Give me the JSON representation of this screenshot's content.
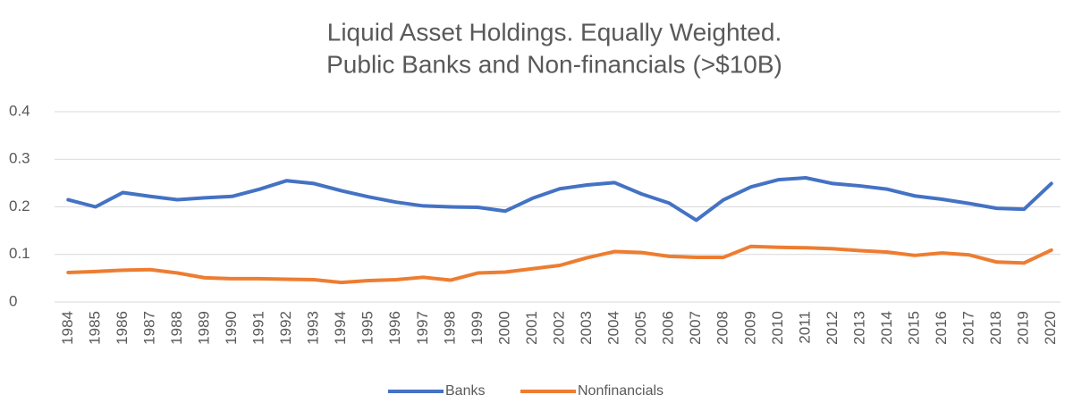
{
  "chart_data": {
    "type": "line",
    "title": "Liquid Asset Holdings. Equally Weighted.",
    "subtitle": "Public Banks and Non-financials (>$10B)",
    "categories": [
      "1984",
      "1985",
      "1986",
      "1987",
      "1988",
      "1989",
      "1990",
      "1991",
      "1992",
      "1993",
      "1994",
      "1995",
      "1996",
      "1997",
      "1998",
      "1999",
      "2000",
      "2001",
      "2002",
      "2003",
      "2004",
      "2005",
      "2006",
      "2007",
      "2008",
      "2009",
      "2010",
      "2011",
      "2012",
      "2013",
      "2014",
      "2015",
      "2016",
      "2017",
      "2018",
      "2019",
      "2020"
    ],
    "series": [
      {
        "name": "Banks",
        "color": "#4472c4",
        "values": [
          0.215,
          0.2,
          0.23,
          0.222,
          0.215,
          0.219,
          0.222,
          0.237,
          0.255,
          0.249,
          0.234,
          0.221,
          0.21,
          0.202,
          0.2,
          0.199,
          0.191,
          0.218,
          0.238,
          0.246,
          0.251,
          0.227,
          0.208,
          0.172,
          0.215,
          0.242,
          0.257,
          0.261,
          0.249,
          0.244,
          0.237,
          0.223,
          0.216,
          0.207,
          0.197,
          0.195,
          0.249
        ]
      },
      {
        "name": "Nonfinancials",
        "color": "#ed7d31",
        "values": [
          0.062,
          0.064,
          0.067,
          0.068,
          0.061,
          0.051,
          0.049,
          0.049,
          0.048,
          0.047,
          0.041,
          0.045,
          0.047,
          0.052,
          0.046,
          0.061,
          0.063,
          0.07,
          0.077,
          0.093,
          0.106,
          0.104,
          0.096,
          0.094,
          0.094,
          0.117,
          0.115,
          0.114,
          0.112,
          0.108,
          0.105,
          0.098,
          0.103,
          0.099,
          0.084,
          0.082,
          0.109
        ]
      }
    ],
    "ylim": [
      0,
      0.4
    ],
    "yticks": [
      0,
      0.1,
      0.2,
      0.3,
      0.4
    ],
    "grid": true,
    "legend": "bottom"
  }
}
